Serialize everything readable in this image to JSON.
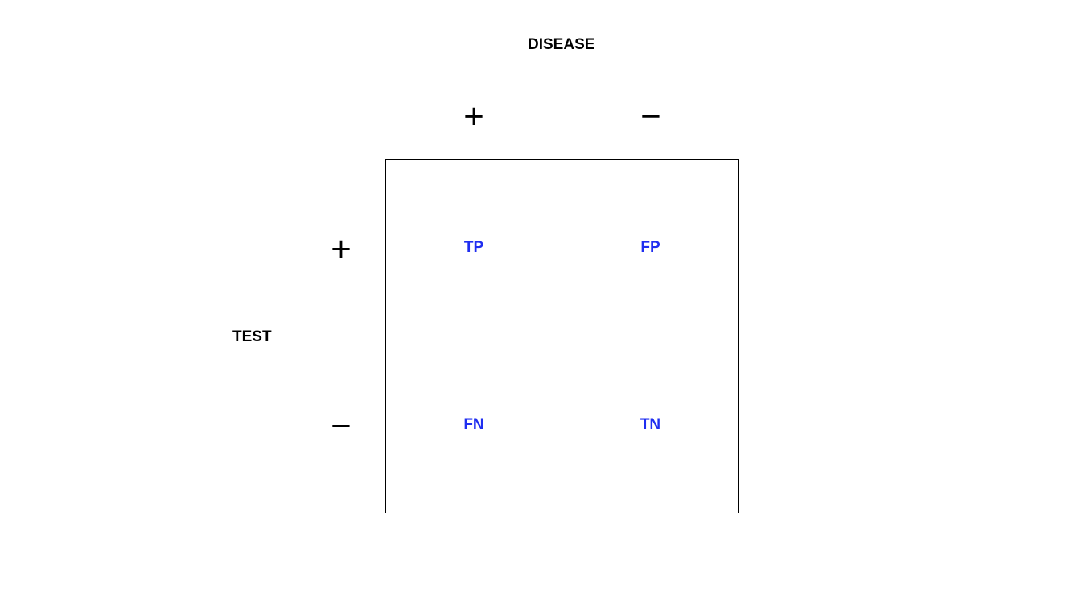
{
  "disease_title": "DISEASE",
  "test_title": "TEST",
  "columns": {
    "positive": "+",
    "negative": "−"
  },
  "rows": {
    "positive": "+",
    "negative": "−"
  },
  "cells": {
    "tp": "TP",
    "fp": "FP",
    "fn": "FN",
    "tn": "TN"
  },
  "colors": {
    "cell_text": "#1f2ef0",
    "lines": "#000000",
    "labels": "#000000"
  }
}
